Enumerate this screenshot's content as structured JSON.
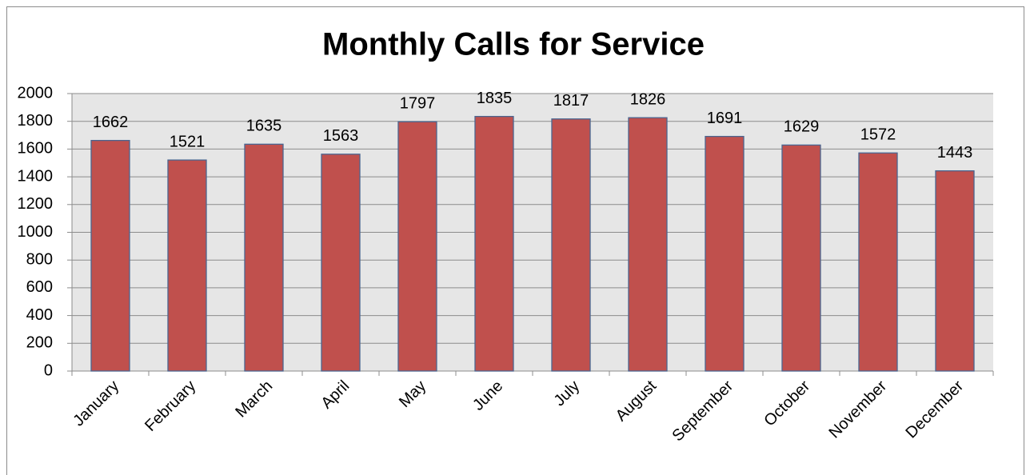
{
  "chart_data": {
    "type": "bar",
    "title": "Monthly Calls for Service",
    "categories": [
      "January",
      "February",
      "March",
      "April",
      "May",
      "June",
      "July",
      "August",
      "September",
      "October",
      "November",
      "December"
    ],
    "values": [
      1662,
      1521,
      1635,
      1563,
      1797,
      1835,
      1817,
      1826,
      1691,
      1629,
      1572,
      1443
    ],
    "color": "#c0504d",
    "ylim": [
      0,
      2000
    ],
    "yticks": [
      0,
      200,
      400,
      600,
      800,
      1000,
      1200,
      1400,
      1600,
      1800,
      2000
    ],
    "grid": true
  }
}
